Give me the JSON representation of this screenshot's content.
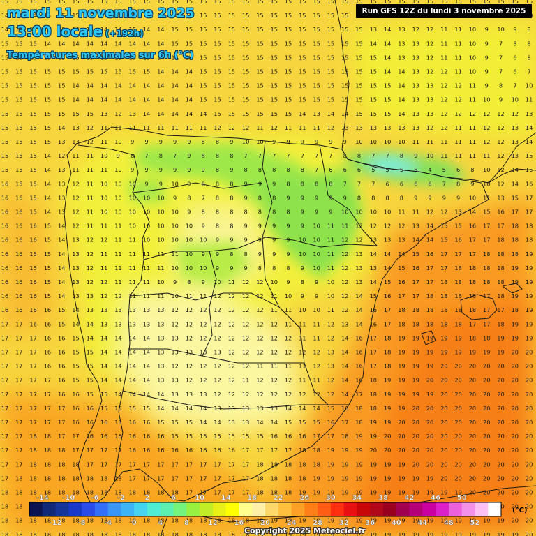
{
  "header": {
    "date": "mardi 11 novembre 2025",
    "time": "13:00 locale",
    "offset": "(+192h)",
    "subtitle": "Températures maximales sur 6h (°C)",
    "run": "Run GFS 12Z du lundi 3 novembre 2025"
  },
  "footer": {
    "copyright": "Copyright 2025 Meteociel.fr"
  },
  "legend": {
    "unit": "(°C)",
    "labels_top": [
      "-14",
      "-10",
      "-6",
      "-2",
      "2",
      "6",
      "10",
      "14",
      "18",
      "22",
      "26",
      "30",
      "34",
      "38",
      "42",
      "46",
      "50"
    ],
    "labels_bottom": [
      "-12",
      "-8",
      "-4",
      "0",
      "4",
      "8",
      "12",
      "16",
      "20",
      "24",
      "28",
      "32",
      "36",
      "40",
      "44",
      "48",
      "52"
    ],
    "colors": [
      "#0b1450",
      "#0f2878",
      "#14349a",
      "#1838c8",
      "#2c4ce8",
      "#3470f5",
      "#3894f5",
      "#3cb4f5",
      "#46d4f0",
      "#50ecd4",
      "#5cf0b0",
      "#74f47c",
      "#98f040",
      "#c0ec28",
      "#e8f018",
      "#ffff00",
      "#ffff8c",
      "#fff0a8",
      "#ffd86c",
      "#ffc040",
      "#ffa028",
      "#ff8018",
      "#ff5c14",
      "#ff3010",
      "#e81010",
      "#c80808",
      "#b00818",
      "#980020",
      "#a00050",
      "#b40078",
      "#c800a0",
      "#dc20c8",
      "#ec60dc",
      "#f490e8",
      "#fcc0f4",
      "#ffffff"
    ]
  },
  "map": {
    "number_rows": [
      "15 15 15 15 15 15 15 15 15 15 15 15 15 15 15 15 15 15 15 15 15 15 15 15 15 15 15 15 15 15 15 15 15 15 15 15 15 15",
      "14 14 14 15 15 15 15 15 15 15 15 14 14 15 15 15 15 15 15 15 15 15 15 15 15 15 13 13 13 13 13 12 12 11 12 11 10 10",
      "14 14 14 15 15 14 14 14 14 15 14 14 15 15 15 15 15 15 15 15 15 15 15 15 15 15 13 14 13 12 12 11 11 10 9 10 9 8",
      "15 15 15 14 14 14 14 14 14 14 14 14 15 15 15 15 15 15 15 15 15 15 15 15 15 15 14 14 13 13 12 11 11 10 9 7 8 8",
      "15 15 15 15 15 15 15 15 15 15 15 14 14 14 15 15 15 15 15 15 15 15 15 15 15 15 15 14 13 13 12 11 11 10 9 7 6 8",
      "15 15 15 15 15 15 15 15 15 15 15 14 14 14 15 15 15 15 15 15 15 15 15 15 15 15 15 14 14 13 12 12 11 10 9 7 6 7",
      "15 15 15 15 15 14 14 14 14 14 14 14 14 14 15 15 15 15 15 15 15 15 15 15 15 15 15 15 14 13 13 12 12 11 9 8 7 10",
      "15 15 15 15 15 14 14 14 14 14 14 14 14 14 15 15 15 15 15 15 15 15 15 15 15 15 15 15 14 13 13 12 12 11 10 9 10 11",
      "15 15 15 15 15 15 15 13 12 13 14 14 14 14 14 15 15 15 15 15 15 14 13 14 14 15 15 15 14 13 13 12 12 12 12 12 12 13",
      "15 15 15 15 14 13 12 11 11 11 11 11 11 11 11 12 12 12 11 12 11 11 11 12 13 13 13 13 13 13 12 12 11 11 12 12 13 14",
      "15 15 15 15 13 13 12 11 10 9 9 9 9 9 8 8 9 10 10 9 9 9 9 9 9 10 10 10 10 11 11 11 11 11 12 12 13 14",
      "15 15 15 14 12 11 11 10 9 8 7 8 7 9 8 8 8 7 7 7 7 7 7 7 8 8 7 7 8 9 10 11 11 11 11 12 13 15",
      "15 15 15 14 13 11 11 11 10 9 9 9 9 9 9 8 9 8 8 8 8 8 7 6 6 6 5 5 5 5 4 5 6 8 10 12 14 16",
      "16 15 15 14 13 12 11 10 10 10 9 9 10 9 8 8 8 9 9 9 8 8 8 8 7 7 7 6 6 6 6 7 8 9 10 12 14 16",
      "16 16 15 14 13 12 11 10 10 10 10 10 9 8 7 8 8 9 8 8 9 9 9 9 9 8 8 8 8 9 9 9 9 10 11 13 15 17",
      "16 16 15 14 13 12 11 10 10 10 10 10 10 9 8 8 8 8 8 8 8 9 9 9 10 10 10 10 11 11 12 12 13 14 15 16 17 17",
      "16 16 16 15 14 12 11 11 11 10 10 10 10 10 9 8 8 9 9 9 9 9 10 11 11 12 12 12 12 13 14 15 15 16 17 17 18 18",
      "16 16 16 15 14 13 12 12 11 11 10 10 10 10 10 9 9 9 9 9 9 10 10 11 12 12 13 13 13 14 14 15 16 17 17 18 18 18",
      "16 16 15 15 14 13 12 11 11 11 11 11 11 10 9 9 8 8 9 9 9 10 10 11 12 13 14 14 14 15 16 17 17 17 18 18 18 19",
      "16 16 15 15 14 13 12 11 11 11 11 11 10 10 10 9 9 9 8 8 8 9 10 11 12 13 13 14 15 16 17 17 18 18 18 18 19 19",
      "16 16 16 15 14 13 12 12 11 11 11 10 9 8 9 10 11 12 12 10 9 8 9 10 12 13 14 15 16 17 17 18 18 18 18 18 19 19",
      "16 16 16 15 14 13 13 12 12 11 11 11 10 11 11 12 12 12 12 11 10 9 9 10 12 14 15 16 17 17 18 18 18 18 17 18 19 19",
      "16 16 16 16 15 14 13 13 13 13 13 13 12 12 12 12 12 12 12 11 11 10 10 11 12 14 16 17 18 18 18 18 18 18 17 17 18 19",
      "17 17 16 16 15 14 14 13 13 13 13 13 12 12 12 12 12 12 12 12 11 11 11 12 13 14 16 17 18 18 18 18 18 17 17 18 19 19",
      "17 17 17 16 16 15 14 14 14 14 14 13 13 12 12 12 12 12 12 12 12 11 11 12 14 16 17 18 19 19 19 19 19 18 18 19 19 19",
      "17 17 17 16 16 15 15 14 14 14 14 13 13 13 13 13 12 12 12 12 12 12 12 13 14 16 17 18 19 19 19 19 19 19 19 19 20 20",
      "17 17 17 16 16 15 15 14 14 14 14 13 12 12 12 12 12 12 11 11 11 11 12 13 14 16 17 18 19 19 19 20 20 20 20 20 20 20",
      "17 17 17 17 16 15 15 14 14 14 14 13 13 12 12 12 12 11 12 12 12 11 11 12 14 16 18 19 19 19 20 20 20 20 20 20 20 20",
      "17 17 17 17 16 16 15 15 14 14 14 14 13 13 13 12 12 12 12 12 12 12 12 12 14 17 18 19 19 19 19 20 20 20 20 20 20 20",
      "17 17 17 17 17 16 16 15 15 15 15 14 14 14 14 13 13 13 13 13 14 14 14 15 16 18 18 19 19 20 20 20 20 20 20 20 20 20",
      "17 17 17 17 17 16 16 16 16 16 16 15 15 15 14 14 13 13 14 14 15 15 15 16 17 18 19 19 20 20 20 20 20 20 20 20 20 20",
      "17 17 18 18 17 17 16 16 16 16 16 16 15 15 15 15 15 15 15 16 16 16 17 17 18 19 19 20 20 20 20 20 20 20 20 20 20 20",
      "17 17 18 18 18 17 17 17 17 16 16 16 16 16 16 16 16 17 17 17 17 18 18 19 19 19 20 20 20 20 20 20 20 20 20 20 20 20",
      "17 17 18 18 18 18 17 17 17 17 17 17 17 17 17 17 17 17 18 18 18 18 18 19 19 19 19 19 19 20 20 20 20 20 20 20 20 20",
      "17 18 18 18 18 18 18 18 18 17 17 17 17 17 17 17 17 17 18 18 18 18 19 19 19 19 19 19 19 19 19 20 20 20 20 20 20 20",
      "18 18 18 18 18 18 18 18 18 18 18 18 18 17 17 17 17 17 18 18 18 19 19 19 19 19 19 19 19 19 19 19 19 20 20 20 20 20",
      "18 18 18 18 18 18 18 18 18 18 18 18 18 18 18 18 18 18 18 18 18 19 19 19 19 19 19 19 19 19 19 19 19 19 19 20 20 20",
      "18 18 18 18 18 18 18 18 18 18 18 18 18 18 18 18 18 18 18 19 19 19 19 19 19 19 19 19 19 19 19 19 19 19 19 19 20 20",
      "18 18 18 18 18 18 18 18 18 18 18 18 18 18 18 18 18 18 19 19 19 19 19 19 19 19 19 19 19 19 19 19 19 19 19 19 19 20"
    ]
  }
}
